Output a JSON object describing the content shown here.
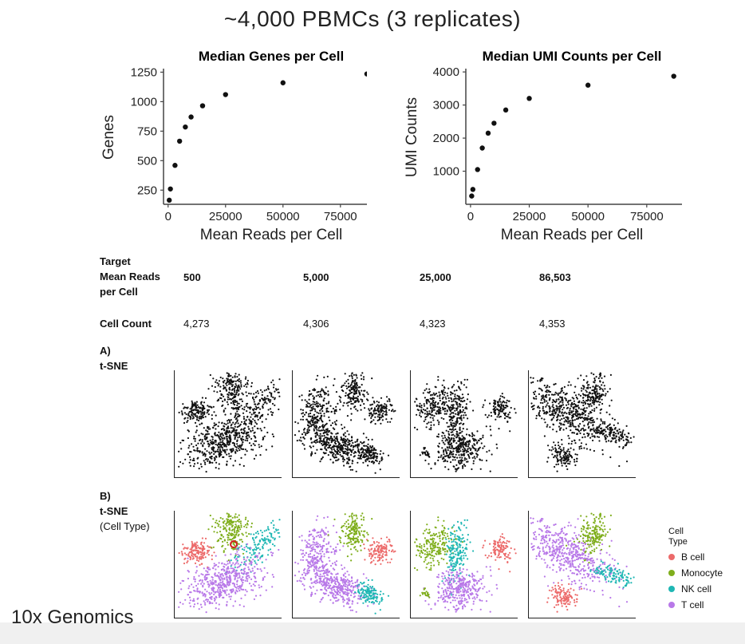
{
  "slide": {
    "title": "~4,000 PBMCs (3 replicates)",
    "footer": "10x Genomics"
  },
  "colors": {
    "b_cell": "#ec6a6a",
    "monocyte": "#7fae1c",
    "nk_cell": "#1fb7b4",
    "t_cell": "#b878e8",
    "point": "#111111",
    "highlight": "#d42020"
  },
  "chart_data": [
    {
      "type": "scatter",
      "title": "Median Genes per Cell",
      "xlabel": "Mean Reads per Cell",
      "ylabel": "Genes",
      "xlim": [
        -2000,
        90000
      ],
      "ylim": [
        130,
        1280
      ],
      "xticks": [
        0,
        25000,
        50000,
        75000
      ],
      "xtick_labels": [
        "0",
        "25000",
        "50000",
        "75000"
      ],
      "yticks": [
        250,
        500,
        750,
        1000,
        1250
      ],
      "ytick_labels": [
        "250",
        "500",
        "750",
        "1000",
        "1250"
      ],
      "x": [
        500,
        1000,
        3000,
        5000,
        7500,
        10000,
        15000,
        25000,
        50000,
        86503
      ],
      "y": [
        165,
        260,
        460,
        665,
        785,
        870,
        965,
        1060,
        1160,
        1235
      ]
    },
    {
      "type": "scatter",
      "title": "Median UMI Counts per Cell",
      "xlabel": "Mean Reads per Cell",
      "ylabel": "UMI Counts",
      "xlim": [
        -2000,
        90000
      ],
      "ylim": [
        0,
        4100
      ],
      "xticks": [
        0,
        25000,
        50000,
        75000
      ],
      "xtick_labels": [
        "0",
        "25000",
        "50000",
        "75000"
      ],
      "yticks": [
        1000,
        2000,
        3000,
        4000
      ],
      "ytick_labels": [
        "1000",
        "2000",
        "3000",
        "4000"
      ],
      "x": [
        500,
        1000,
        3000,
        5000,
        7500,
        10000,
        15000,
        25000,
        50000,
        86503
      ],
      "y": [
        250,
        450,
        1050,
        1700,
        2150,
        2450,
        2850,
        3200,
        3600,
        3870
      ]
    }
  ],
  "table": {
    "target_label_lines": [
      "Target",
      "Mean Reads",
      "per Cell"
    ],
    "targets": [
      "500",
      "5,000",
      "25,000",
      "86,503"
    ],
    "cell_count_label": "Cell Count",
    "cell_counts": [
      "4,273",
      "4,306",
      "4,323",
      "4,353"
    ]
  },
  "section_a": {
    "label": "A)",
    "sublabel": "t-SNE"
  },
  "section_b": {
    "label": "B)",
    "sublabel": "t-SNE",
    "sublabel2": "(Cell Type)"
  },
  "legend": {
    "title_lines": [
      "Cell",
      "Type"
    ],
    "items": [
      {
        "label": "B cell",
        "color": "#ec6a6a"
      },
      {
        "label": "Monocyte",
        "color": "#7fae1c"
      },
      {
        "label": "NK cell",
        "color": "#1fb7b4"
      },
      {
        "label": "T cell",
        "color": "#b878e8"
      }
    ]
  }
}
